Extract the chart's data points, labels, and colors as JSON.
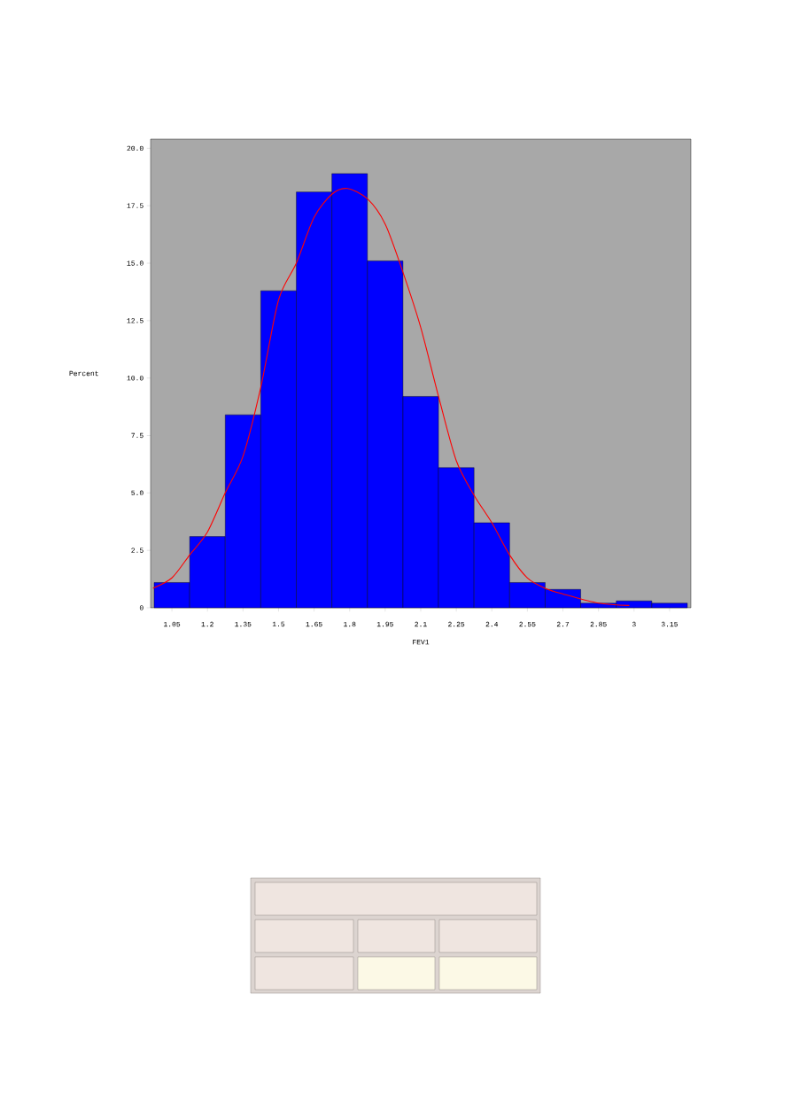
{
  "chart_data": {
    "type": "histogram",
    "xlabel": "FEV1",
    "ylabel": "Percent",
    "color": "#0000ff",
    "bins": [
      0.975,
      1.125,
      1.275,
      1.425,
      1.575,
      1.725,
      1.875,
      2.025,
      2.175,
      2.325,
      2.475,
      2.625,
      2.775,
      2.925,
      3.075,
      3.225
    ],
    "values": [
      1.1,
      3.1,
      8.4,
      13.8,
      18.1,
      18.9,
      15.1,
      9.2,
      6.1,
      3.7,
      1.1,
      0.8,
      0.2,
      0.3,
      0.2
    ],
    "series": [
      {
        "type": "line",
        "color": "#ff0000",
        "x": [
          0.97,
          1.05,
          1.125,
          1.2,
          1.275,
          1.35,
          1.425,
          1.5,
          1.575,
          1.65,
          1.725,
          1.79,
          1.875,
          1.95,
          2.025,
          2.1,
          2.175,
          2.25,
          2.325,
          2.4,
          2.475,
          2.55,
          2.625,
          2.7,
          2.85,
          2.98
        ],
        "values": [
          0.85,
          1.3,
          2.3,
          3.3,
          5.0,
          6.6,
          9.6,
          13.4,
          15.0,
          17.0,
          18.0,
          18.25,
          17.8,
          16.7,
          14.6,
          12.2,
          9.2,
          6.4,
          4.9,
          3.7,
          2.3,
          1.3,
          0.85,
          0.6,
          0.2,
          0.1
        ]
      }
    ],
    "xlim": [
      0.96,
      3.24
    ],
    "ylim": [
      0,
      20.4
    ],
    "xticks": [
      1.05,
      1.2,
      1.35,
      1.5,
      1.65,
      1.8,
      1.95,
      2.1,
      2.25,
      2.4,
      2.55,
      2.7,
      2.85,
      3,
      3.15
    ],
    "yticks": [
      0,
      {
        "value": 2.5,
        "label": "2.5"
      },
      {
        "value": 5,
        "label": "5.0"
      },
      {
        "value": 7.5,
        "label": "7.5"
      },
      {
        "value": 10,
        "label": "10.0"
      },
      {
        "value": 12.5,
        "label": "12.5"
      },
      {
        "value": 15,
        "label": "15.0"
      },
      {
        "value": 17.5,
        "label": "17.5"
      },
      {
        "value": 20,
        "label": "20.0"
      }
    ]
  }
}
